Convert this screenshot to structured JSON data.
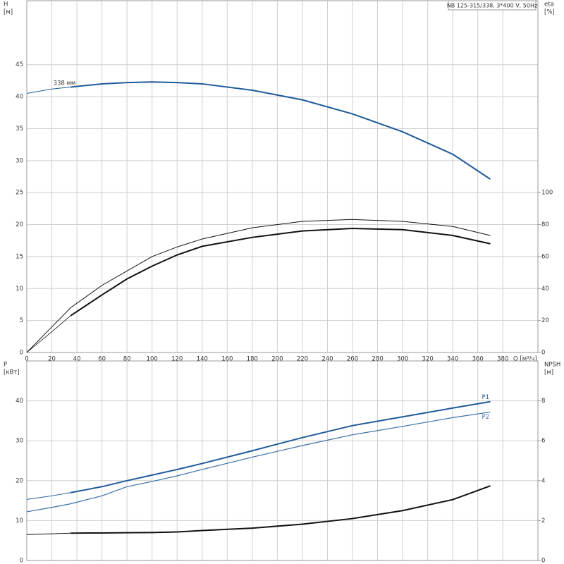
{
  "chart_data": [
    {
      "type": "line",
      "title": "NB 125-315/338, 3*400 V, 50Hz",
      "ylabel": "H",
      "yunit": "[м]",
      "y2label": "eta",
      "y2unit": "[%]",
      "xlabel": "Q [м³/ч]",
      "x": [
        0,
        20,
        35,
        60,
        80,
        100,
        120,
        140,
        180,
        220,
        260,
        300,
        340,
        370
      ],
      "xlim": [
        0,
        408
      ],
      "xticks": [
        0,
        20,
        40,
        60,
        80,
        100,
        120,
        140,
        160,
        180,
        200,
        220,
        240,
        260,
        280,
        300,
        320,
        340,
        360,
        380
      ],
      "ylim": [
        0,
        55
      ],
      "yticks": [
        0,
        5,
        10,
        15,
        20,
        25,
        30,
        35,
        40,
        45
      ],
      "y2lim": [
        0,
        220
      ],
      "y2ticks": [
        0,
        20,
        40,
        60,
        80,
        100
      ],
      "grid": true,
      "annotations": [
        {
          "text": "338 мм",
          "x": 20,
          "y": 42
        }
      ],
      "series": [
        {
          "color": "#1f5a99",
          "line_width": 2,
          "values": [
            null,
            null,
            41.5,
            42.0,
            42.2,
            42.3,
            42.2,
            42.0,
            41.0,
            39.5,
            37.3,
            34.5,
            31.0,
            27.1
          ]
        },
        {
          "color": "#1f5a99",
          "line_width": 1,
          "values": [
            40.5,
            41.2,
            41.5,
            null,
            null,
            null,
            null,
            null,
            null,
            null,
            null,
            null,
            null,
            null
          ]
        },
        {
          "color": "#111111",
          "line_width": 2,
          "axis": "y2",
          "values": [
            null,
            null,
            23,
            36,
            46,
            54,
            61,
            66.4,
            72,
            76,
            77.6,
            76.8,
            73.2,
            68
          ]
        },
        {
          "color": "#111111",
          "line_width": 0.8,
          "axis": "y2",
          "values": [
            0,
            13,
            23,
            null,
            null,
            null,
            null,
            null,
            null,
            null,
            null,
            null,
            null,
            null
          ]
        },
        {
          "color": "#111111",
          "line_width": 1,
          "axis": "y2",
          "values": [
            0,
            16,
            28,
            42,
            51,
            60,
            66,
            71,
            78,
            82,
            83.2,
            82,
            78.8,
            73.2
          ]
        }
      ]
    },
    {
      "type": "line",
      "ylabel": "P",
      "yunit": "[кВт]",
      "y2label": "NPSH",
      "y2unit": "[м]",
      "x": [
        0,
        20,
        35,
        60,
        80,
        100,
        120,
        140,
        180,
        220,
        260,
        300,
        340,
        370
      ],
      "xlim": [
        0,
        408
      ],
      "ylim": [
        0,
        50
      ],
      "yticks": [
        0,
        10,
        20,
        30,
        40
      ],
      "y2lim": [
        0,
        10
      ],
      "y2ticks": [
        0,
        2,
        4,
        6,
        8
      ],
      "grid": true,
      "series": [
        {
          "name": "P1",
          "label_pos": "above",
          "color": "#1f5a99",
          "line_width": 2,
          "values": [
            null,
            null,
            17.0,
            18.5,
            20.0,
            21.4,
            22.8,
            24.3,
            27.5,
            30.8,
            33.8,
            36.0,
            38.2,
            39.8
          ]
        },
        {
          "color": "#1f5a99",
          "line_width": 1,
          "values": [
            15.3,
            16.2,
            17.0,
            null,
            null,
            null,
            null,
            null,
            null,
            null,
            null,
            null,
            null,
            null
          ]
        },
        {
          "name": "P2",
          "label_pos": "below",
          "color": "#3a6ea8",
          "line_width": 1.2,
          "values": [
            12.2,
            13.3,
            14.2,
            16.2,
            18.5,
            19.8,
            21.2,
            22.8,
            25.9,
            28.8,
            31.5,
            33.6,
            35.8,
            37.2
          ]
        },
        {
          "color": "#111111",
          "line_width": 2,
          "axis": "y2",
          "values": [
            null,
            null,
            1.37,
            1.38,
            1.39,
            1.4,
            1.43,
            1.5,
            1.62,
            1.82,
            2.1,
            2.5,
            3.05,
            3.74
          ]
        },
        {
          "color": "#111111",
          "line_width": 1,
          "axis": "y2",
          "values": [
            1.3,
            1.34,
            1.37,
            null,
            null,
            null,
            null,
            null,
            null,
            null,
            null,
            null,
            null,
            null
          ]
        }
      ]
    }
  ]
}
